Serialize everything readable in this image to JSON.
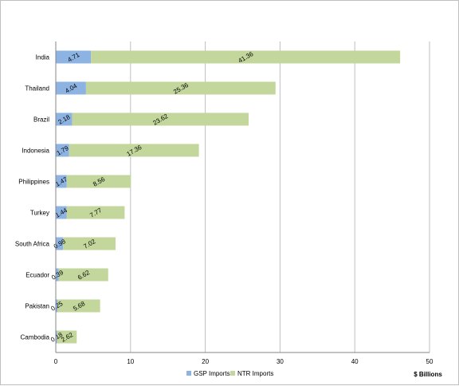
{
  "chart_data": {
    "type": "bar",
    "orientation": "horizontal",
    "stacked": true,
    "categories": [
      "India",
      "Thailand",
      "Brazil",
      "Indonesia",
      "Philippines",
      "Turkey",
      "South Africa",
      "Ecuador",
      "Pakistan",
      "Cambodia"
    ],
    "series": [
      {
        "name": "GSP Imports",
        "color": "#8db3e2",
        "values": [
          4.71,
          4.04,
          2.18,
          1.79,
          1.47,
          1.44,
          0.98,
          0.39,
          0.25,
          0.18
        ]
      },
      {
        "name": "NTR Imports",
        "color": "#c3d69b",
        "values": [
          41.36,
          25.36,
          23.62,
          17.36,
          8.56,
          7.77,
          7.02,
          6.62,
          5.68,
          2.62
        ]
      }
    ],
    "value_labels": [
      [
        "4.71",
        "4.04",
        "2.18",
        "1.79",
        "1.47",
        "1.44",
        "0.98",
        "0.39",
        "0.25",
        "0.18"
      ],
      [
        "41.36",
        "25.36",
        "23.62",
        "17.36",
        "8.56",
        "7.77",
        "7.02",
        "6.62",
        "5.68",
        "2.62"
      ]
    ],
    "x_unit_label": "$ Billions",
    "xlim": [
      0,
      50
    ],
    "x_ticks": [
      0,
      10,
      20,
      30,
      40,
      50
    ],
    "x_tick_labels": [
      "0",
      "10",
      "20",
      "30",
      "40",
      "50"
    ],
    "gridlines": "vertical",
    "legend_position": "bottom",
    "gridline_color": "#bfbfbf",
    "axis_color": "#868686"
  }
}
